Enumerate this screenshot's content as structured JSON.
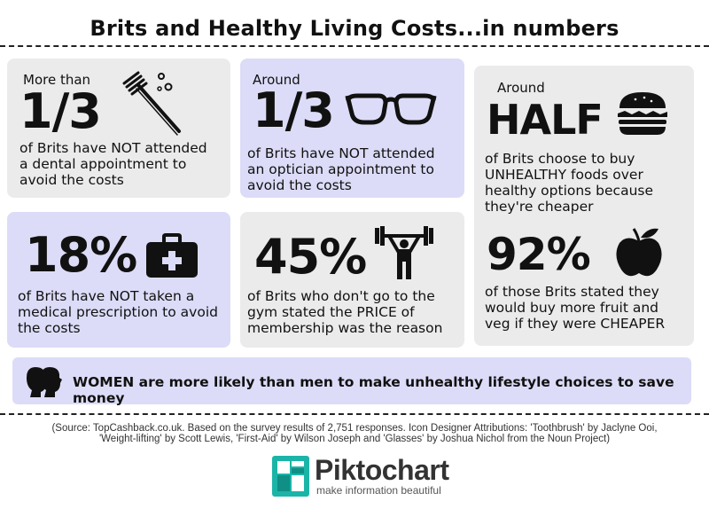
{
  "title": "Brits and Healthy Living Costs...in numbers",
  "cards": {
    "dental": {
      "lead": "More than",
      "stat": "1/3",
      "desc_lines": [
        "of Brits have NOT attended",
        "a dental appointment to",
        "avoid the costs"
      ],
      "icon": "toothbrush-icon"
    },
    "optician": {
      "lead": "Around",
      "stat": "1/3",
      "desc_lines": [
        "of Brits have NOT attended",
        "an optician appointment to",
        "avoid the costs"
      ],
      "icon": "glasses-icon"
    },
    "food": {
      "lead": "Around",
      "stat": "HALF",
      "desc_lines": [
        "of Brits choose to buy",
        "UNHEALTHY foods over",
        "healthy options because",
        "they're cheaper"
      ],
      "icon": "burger-icon"
    },
    "fruit": {
      "stat": "92%",
      "desc_lines": [
        "of those Brits stated they",
        "would buy more fruit and",
        "veg if they were CHEAPER"
      ],
      "icon": "apple-icon"
    },
    "medical": {
      "stat": "18%",
      "desc_lines": [
        "of Brits have NOT taken a",
        "medical prescription to avoid",
        "the costs"
      ],
      "icon": "first-aid-icon"
    },
    "gym": {
      "stat": "45%",
      "desc_lines": [
        "of Brits who don't go to the",
        "gym stated the PRICE of",
        "membership was the reason"
      ],
      "icon": "weight-lifting-icon"
    }
  },
  "banner": {
    "text": "WOMEN are more likely than men to make unhealthy lifestyle choices to save money",
    "icon": "women-profiles-icon"
  },
  "source_lines": [
    "(Source: TopCashback.co.uk. Based on the survey results of 2,751 responses. Icon Designer Attributions: 'Toothbrush' by Jaclyne Ooi,",
    "'Weight-lifting' by Scott Lewis, 'First-Aid' by Wilson Joseph and 'Glasses' by Joshua Nichol from the Noun Project)"
  ],
  "logo": {
    "name": "Piktochart",
    "tagline": "make information beautiful"
  },
  "colors": {
    "grey_card": "#ebebeb",
    "lavender_card": "#dcdcf8",
    "logo_teal": "#1bb5a8"
  }
}
